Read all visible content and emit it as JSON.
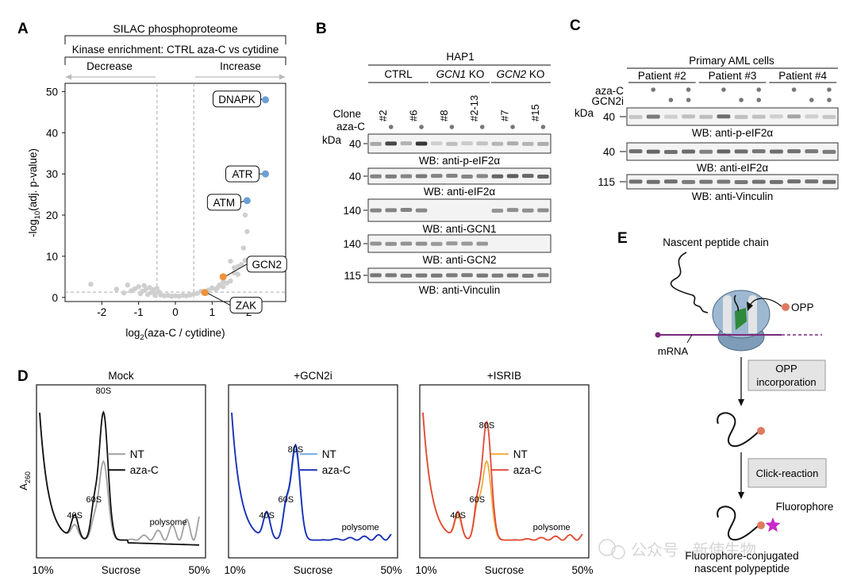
{
  "panel_letters": {
    "A": "A",
    "B": "B",
    "C": "C",
    "D": "D",
    "E": "E"
  },
  "panelA": {
    "header_title": "SILAC phosphoproteome",
    "header_subtitle": "Kinase enrichment: CTRL aza-C vs cytidine",
    "decrease_label": "Decrease",
    "increase_label": "Increase",
    "ylabel_prefix": "-log",
    "ylabel_sub": "10",
    "ylabel_suffix": "(adj. p-value)",
    "xlabel_prefix": "log",
    "xlabel_sub": "2",
    "xlabel_suffix": "(aza-C / cytidine)",
    "xticks": [
      "-2",
      "-1",
      "0",
      "1",
      "2"
    ],
    "yticks": [
      "0",
      "10",
      "20",
      "30",
      "40",
      "50"
    ]
  },
  "chart_data": [
    {
      "type": "scatter",
      "title": "Kinase enrichment: CTRL aza-C vs cytidine",
      "xlabel": "log2(aza-C / cytidine)",
      "ylabel": "-log10(adj. p-value)",
      "xlim": [
        -3.0,
        3.0
      ],
      "ylim": [
        -1,
        52
      ],
      "thresholds": {
        "x": [
          -0.5,
          0.5
        ],
        "y": 1.3
      },
      "highlighted": [
        {
          "label": "DNAPK",
          "x": 2.45,
          "y": 48.0,
          "color": "#6b9fd6"
        },
        {
          "label": "ATR",
          "x": 2.45,
          "y": 30.0,
          "color": "#6b9fd6"
        },
        {
          "label": "ATM",
          "x": 1.95,
          "y": 23.5,
          "color": "#6b9fd6"
        },
        {
          "label": "GCN2",
          "x": 1.3,
          "y": 5.0,
          "color": "#f0923b"
        },
        {
          "label": "ZAK",
          "x": 0.8,
          "y": 1.2,
          "color": "#f0923b"
        }
      ],
      "background": [
        [
          -2.3,
          3.2
        ],
        [
          -1.6,
          2.0
        ],
        [
          -1.3,
          3.0
        ],
        [
          -1.1,
          2.1
        ],
        [
          -1.0,
          2.6
        ],
        [
          -0.9,
          1.5
        ],
        [
          -0.85,
          2.9
        ],
        [
          -0.8,
          2.0
        ],
        [
          -0.7,
          2.4
        ],
        [
          -0.65,
          1.2
        ],
        [
          -0.6,
          1.9
        ],
        [
          -0.5,
          2.2
        ],
        [
          -0.45,
          1.3
        ],
        [
          -1.4,
          1.1
        ],
        [
          -1.2,
          1.6
        ],
        [
          -0.95,
          0.9
        ],
        [
          -0.75,
          0.7
        ],
        [
          -0.55,
          0.5
        ],
        [
          -0.4,
          0.6
        ],
        [
          -0.3,
          0.4
        ],
        [
          -0.2,
          0.5
        ],
        [
          -0.1,
          0.3
        ],
        [
          0.0,
          0.4
        ],
        [
          0.1,
          0.3
        ],
        [
          0.2,
          0.5
        ],
        [
          0.3,
          0.4
        ],
        [
          0.4,
          0.6
        ],
        [
          0.5,
          0.8
        ],
        [
          0.6,
          1.0
        ],
        [
          0.7,
          1.5
        ],
        [
          0.9,
          1.8
        ],
        [
          1.0,
          2.3
        ],
        [
          1.1,
          2.0
        ],
        [
          1.2,
          3.0
        ],
        [
          1.3,
          2.6
        ],
        [
          1.4,
          3.5
        ],
        [
          1.5,
          4.0
        ],
        [
          1.6,
          6.0
        ],
        [
          1.7,
          7.5
        ],
        [
          1.8,
          8.0
        ],
        [
          1.9,
          9.0
        ],
        [
          1.85,
          12.0
        ],
        [
          1.95,
          16.0
        ],
        [
          1.9,
          20.0
        ],
        [
          1.5,
          8.8
        ],
        [
          1.6,
          7.2
        ],
        [
          1.7,
          5.6
        ],
        [
          1.3,
          3.8
        ],
        [
          1.15,
          2.4
        ],
        [
          0.85,
          1.0
        ]
      ]
    },
    {
      "type": "line",
      "title": "Mock",
      "xlabel": "Sucrose",
      "ylabel": "A260",
      "xrange_labels": [
        "10%",
        "50%"
      ],
      "peak_labels": [
        "40S",
        "60S",
        "80S",
        "polysome"
      ],
      "series": [
        {
          "name": "NT",
          "color": "#a0a0a0"
        },
        {
          "name": "aza-C",
          "color": "#111111"
        }
      ]
    },
    {
      "type": "line",
      "title": "+GCN2i",
      "xlabel": "Sucrose",
      "xrange_labels": [
        "10%",
        "50%"
      ],
      "peak_labels": [
        "40S",
        "60S",
        "80S",
        "polysome"
      ],
      "series": [
        {
          "name": "NT",
          "color": "#6ea8e0"
        },
        {
          "name": "aza-C",
          "color": "#1a2fb8"
        }
      ]
    },
    {
      "type": "line",
      "title": "+ISRIB",
      "xlabel": "Sucrose",
      "xrange_labels": [
        "10%",
        "50%"
      ],
      "peak_labels": [
        "40S",
        "60S",
        "80S",
        "polysome"
      ],
      "series": [
        {
          "name": "NT",
          "color": "#f2a93b"
        },
        {
          "name": "aza-C",
          "color": "#e04a3a"
        }
      ]
    }
  ],
  "panelB": {
    "title": "HAP1",
    "groups": {
      "ctrl": "CTRL",
      "gcn1_gene": "GCN1",
      "gcn1_suffix": " KO",
      "gcn2_gene": "GCN2",
      "gcn2_suffix": " KO"
    },
    "clone_label": "Clone",
    "treat_label": "aza-C",
    "clones": [
      "#2",
      "#6",
      "#8",
      "#2-13",
      "#7",
      "#15"
    ],
    "kda_label": "kDa",
    "blots": [
      {
        "mw": "40",
        "caption": "WB: anti-p-eIF2α"
      },
      {
        "mw": "40",
        "caption": "WB: anti-eIF2α"
      },
      {
        "mw": "140",
        "caption": "WB: anti-GCN1"
      },
      {
        "mw": "140",
        "caption": "WB: anti-GCN2"
      },
      {
        "mw": "115",
        "caption": "WB: anti-Vinculin"
      }
    ]
  },
  "panelC": {
    "title": "Primary AML cells",
    "patients": [
      "Patient #2",
      "Patient #3",
      "Patient #4"
    ],
    "treat_labels": [
      "aza-C",
      "GCN2i"
    ],
    "kda_label": "kDa",
    "blots": [
      {
        "mw": "40",
        "caption": "WB: anti-p-eIF2α"
      },
      {
        "mw": "40",
        "caption": "WB: anti-eIF2α"
      },
      {
        "mw": "115",
        "caption": "WB: anti-Vinculin"
      }
    ]
  },
  "panelE": {
    "nascent_label": "Nascent peptide chain",
    "opp_label": "OPP",
    "mrna_label": "mRNA",
    "step1_line1": "OPP",
    "step1_line2": "incorporation",
    "step2": "Click-reaction",
    "fluor_label": "Fluorophore",
    "final_line1": "Fluorophore-conjugated",
    "final_line2": "nascent polypeptide"
  },
  "watermark": "公众号 · 新使生物"
}
